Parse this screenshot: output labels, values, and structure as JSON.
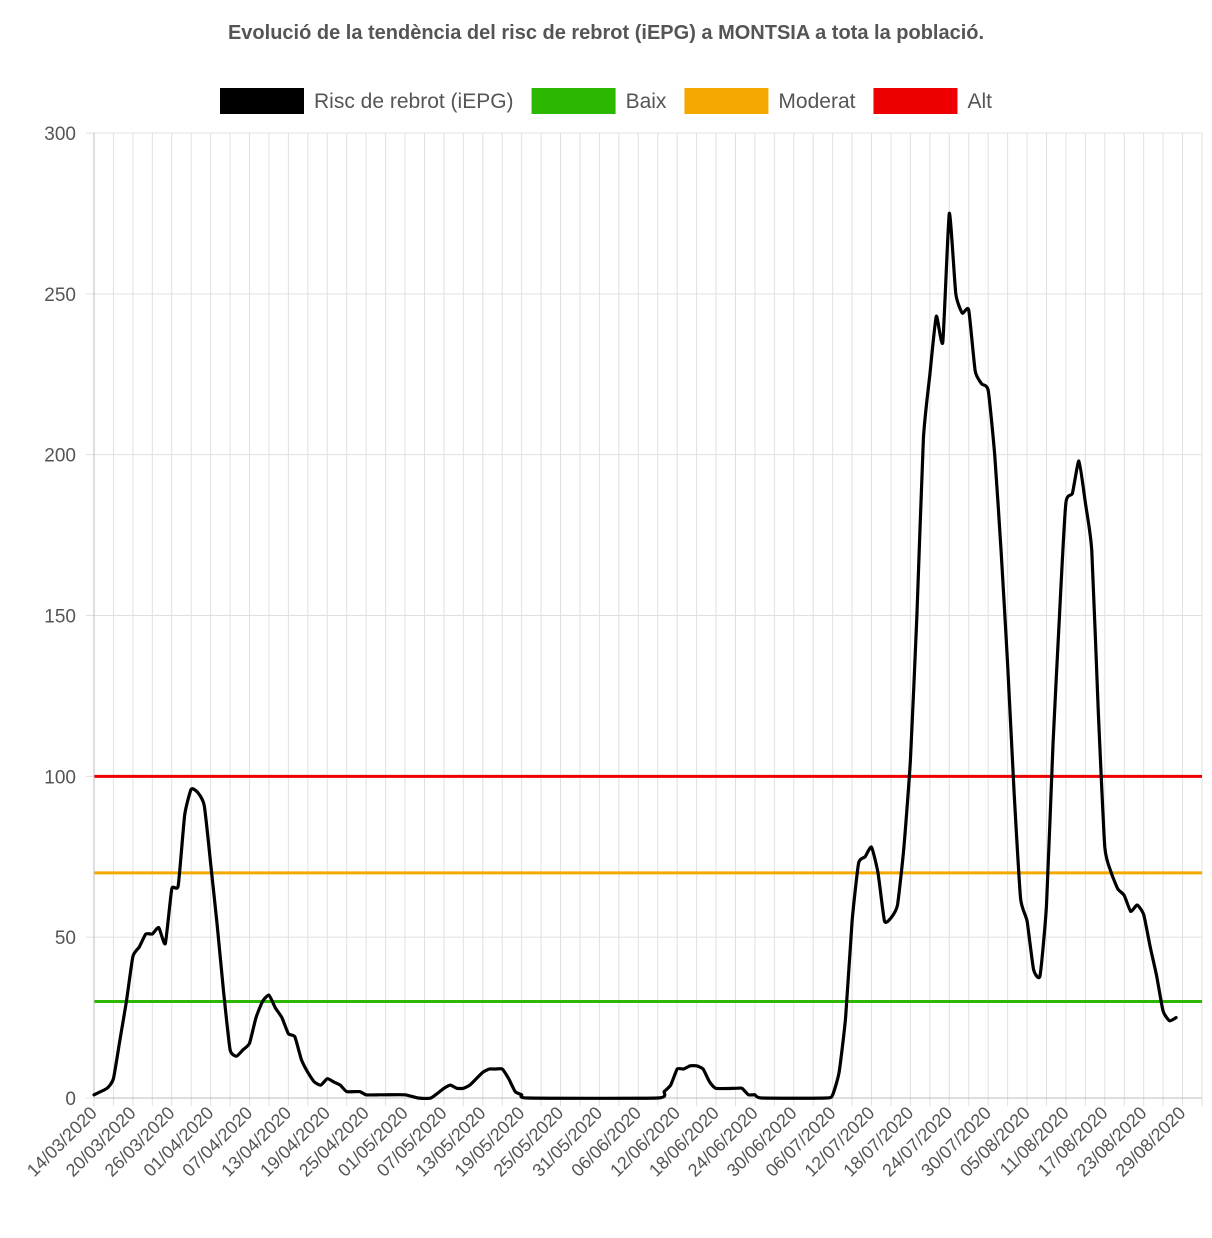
{
  "chart_data": {
    "type": "line",
    "title": "Evolució de la tendència del risc de rebrot (iEPG) a MONTSIA a tota la població.",
    "xlabel": "",
    "ylabel": "",
    "ylim": [
      0,
      300
    ],
    "yticks": [
      "0",
      "50",
      "100",
      "150",
      "200",
      "250",
      "300"
    ],
    "grid": true,
    "legend_position": "top",
    "x_start": "14/03/2020",
    "x_end": "01/09/2020",
    "xtick_labels": [
      "14/03/2020",
      "20/03/2020",
      "26/03/2020",
      "01/04/2020",
      "07/04/2020",
      "13/04/2020",
      "19/04/2020",
      "25/04/2020",
      "01/05/2020",
      "07/05/2020",
      "13/05/2020",
      "19/05/2020",
      "25/05/2020",
      "31/05/2020",
      "06/06/2020",
      "12/06/2020",
      "18/06/2020",
      "24/06/2020",
      "30/06/2020",
      "06/07/2020",
      "12/07/2020",
      "18/07/2020",
      "24/07/2020",
      "30/07/2020",
      "05/08/2020",
      "11/08/2020",
      "17/08/2020",
      "23/08/2020",
      "29/08/2020"
    ],
    "series": [
      {
        "name": "Risc de rebrot (iEPG)",
        "color": "#000000",
        "points": [
          [
            "14/03/2020",
            1
          ],
          [
            "16/03/2020",
            3
          ],
          [
            "17/03/2020",
            6
          ],
          [
            "18/03/2020",
            18
          ],
          [
            "19/03/2020",
            30
          ],
          [
            "20/03/2020",
            44
          ],
          [
            "21/03/2020",
            47
          ],
          [
            "22/03/2020",
            51
          ],
          [
            "23/03/2020",
            51
          ],
          [
            "24/03/2020",
            53
          ],
          [
            "25/03/2020",
            48
          ],
          [
            "26/03/2020",
            65
          ],
          [
            "27/03/2020",
            66
          ],
          [
            "28/03/2020",
            88
          ],
          [
            "29/03/2020",
            96
          ],
          [
            "30/03/2020",
            95
          ],
          [
            "31/03/2020",
            91
          ],
          [
            "01/04/2020",
            73
          ],
          [
            "02/04/2020",
            54
          ],
          [
            "03/04/2020",
            33
          ],
          [
            "04/04/2020",
            15
          ],
          [
            "05/04/2020",
            13
          ],
          [
            "06/04/2020",
            15
          ],
          [
            "07/04/2020",
            17
          ],
          [
            "08/04/2020",
            25
          ],
          [
            "09/04/2020",
            30
          ],
          [
            "10/04/2020",
            32
          ],
          [
            "11/04/2020",
            28
          ],
          [
            "12/04/2020",
            25
          ],
          [
            "13/04/2020",
            20
          ],
          [
            "14/04/2020",
            19
          ],
          [
            "15/04/2020",
            12
          ],
          [
            "16/04/2020",
            8
          ],
          [
            "17/04/2020",
            5
          ],
          [
            "18/04/2020",
            4
          ],
          [
            "19/04/2020",
            6
          ],
          [
            "20/04/2020",
            5
          ],
          [
            "21/04/2020",
            4
          ],
          [
            "22/04/2020",
            2
          ],
          [
            "24/04/2020",
            2
          ],
          [
            "25/04/2020",
            1
          ],
          [
            "27/04/2020",
            1
          ],
          [
            "28/04/2020",
            1
          ],
          [
            "01/05/2020",
            1
          ],
          [
            "03/05/2020",
            0
          ],
          [
            "05/05/2020",
            0
          ],
          [
            "07/05/2020",
            3
          ],
          [
            "08/05/2020",
            4
          ],
          [
            "09/05/2020",
            3
          ],
          [
            "10/05/2020",
            3
          ],
          [
            "11/05/2020",
            4
          ],
          [
            "12/05/2020",
            6
          ],
          [
            "13/05/2020",
            8
          ],
          [
            "14/05/2020",
            9
          ],
          [
            "15/05/2020",
            9
          ],
          [
            "16/05/2020",
            9
          ],
          [
            "17/05/2020",
            6
          ],
          [
            "18/05/2020",
            2
          ],
          [
            "19/05/2020",
            1
          ],
          [
            "20/05/2020",
            0
          ],
          [
            "09/06/2020",
            0
          ],
          [
            "10/06/2020",
            2
          ],
          [
            "11/06/2020",
            4
          ],
          [
            "12/06/2020",
            9
          ],
          [
            "13/06/2020",
            9
          ],
          [
            "14/06/2020",
            10
          ],
          [
            "15/06/2020",
            10
          ],
          [
            "16/06/2020",
            9
          ],
          [
            "17/06/2020",
            5
          ],
          [
            "18/06/2020",
            3
          ],
          [
            "21/06/2020",
            3
          ],
          [
            "22/06/2020",
            3
          ],
          [
            "23/06/2020",
            1
          ],
          [
            "24/06/2020",
            1
          ],
          [
            "25/06/2020",
            0
          ],
          [
            "05/07/2020",
            0
          ],
          [
            "06/07/2020",
            1
          ],
          [
            "07/07/2020",
            8
          ],
          [
            "08/07/2020",
            25
          ],
          [
            "09/07/2020",
            55
          ],
          [
            "10/07/2020",
            73
          ],
          [
            "11/07/2020",
            75
          ],
          [
            "12/07/2020",
            78
          ],
          [
            "13/07/2020",
            70
          ],
          [
            "14/07/2020",
            55
          ],
          [
            "15/07/2020",
            56
          ],
          [
            "16/07/2020",
            60
          ],
          [
            "17/07/2020",
            78
          ],
          [
            "18/07/2020",
            105
          ],
          [
            "19/07/2020",
            150
          ],
          [
            "20/07/2020",
            205
          ],
          [
            "21/07/2020",
            225
          ],
          [
            "22/07/2020",
            243
          ],
          [
            "23/07/2020",
            235
          ],
          [
            "24/07/2020",
            275
          ],
          [
            "25/07/2020",
            250
          ],
          [
            "26/07/2020",
            244
          ],
          [
            "27/07/2020",
            245
          ],
          [
            "28/07/2020",
            226
          ],
          [
            "29/07/2020",
            222
          ],
          [
            "30/07/2020",
            220
          ],
          [
            "31/07/2020",
            200
          ],
          [
            "01/08/2020",
            170
          ],
          [
            "02/08/2020",
            135
          ],
          [
            "03/08/2020",
            95
          ],
          [
            "04/08/2020",
            62
          ],
          [
            "05/08/2020",
            55
          ],
          [
            "06/08/2020",
            40
          ],
          [
            "07/08/2020",
            38
          ],
          [
            "08/08/2020",
            60
          ],
          [
            "09/08/2020",
            110
          ],
          [
            "10/08/2020",
            150
          ],
          [
            "11/08/2020",
            185
          ],
          [
            "12/08/2020",
            188
          ],
          [
            "13/08/2020",
            198
          ],
          [
            "14/08/2020",
            185
          ],
          [
            "15/08/2020",
            170
          ],
          [
            "16/08/2020",
            120
          ],
          [
            "17/08/2020",
            78
          ],
          [
            "18/08/2020",
            70
          ],
          [
            "19/08/2020",
            65
          ],
          [
            "20/08/2020",
            63
          ],
          [
            "21/08/2020",
            58
          ],
          [
            "22/08/2020",
            60
          ],
          [
            "23/08/2020",
            57
          ],
          [
            "24/08/2020",
            47
          ],
          [
            "25/08/2020",
            38
          ],
          [
            "26/08/2020",
            27
          ],
          [
            "27/08/2020",
            24
          ],
          [
            "28/08/2020",
            25
          ]
        ]
      },
      {
        "name": "Baix",
        "color": "#2cb800",
        "values": [
          30
        ]
      },
      {
        "name": "Moderat",
        "color": "#f5a800",
        "values": [
          70
        ]
      },
      {
        "name": "Alt",
        "color": "#ee0000",
        "values": [
          100
        ]
      }
    ]
  }
}
